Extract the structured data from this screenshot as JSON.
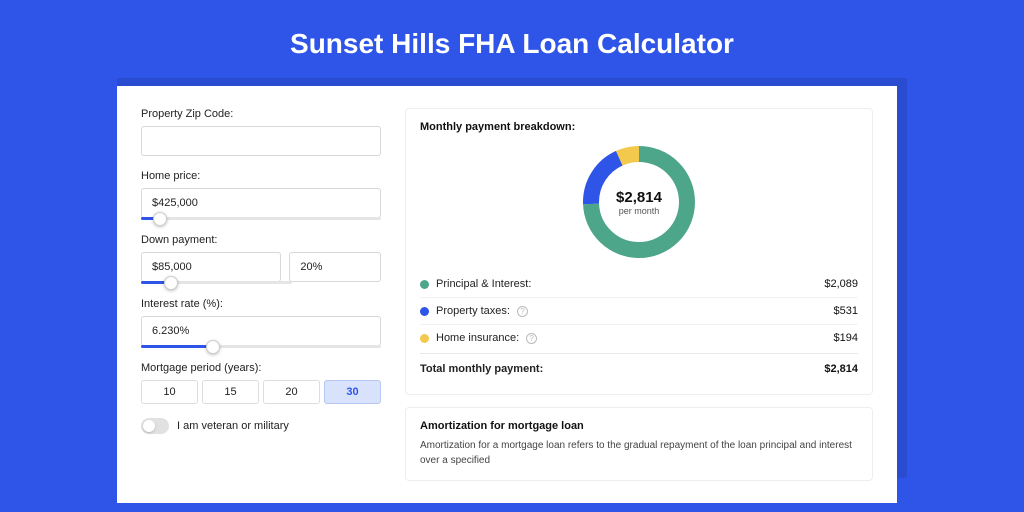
{
  "page_title": "Sunset Hills FHA Loan Calculator",
  "colors": {
    "page_bg": "#2f55e8",
    "shadow_bg": "#2a4cd0",
    "card_bg": "#ffffff",
    "accent": "#2f55e8"
  },
  "form": {
    "zip": {
      "label": "Property Zip Code:",
      "value": ""
    },
    "home_price": {
      "label": "Home price:",
      "value": "$425,000",
      "slider_pct": 8
    },
    "down_payment": {
      "label": "Down payment:",
      "amount": "$85,000",
      "percent": "20%",
      "slider_pct": 20
    },
    "interest_rate": {
      "label": "Interest rate (%):",
      "value": "6.230%",
      "slider_pct": 30
    },
    "mortgage_period": {
      "label": "Mortgage period (years):",
      "options": [
        "10",
        "15",
        "20",
        "30"
      ],
      "selected_index": 3
    },
    "veteran": {
      "label": "I am veteran or military",
      "checked": false
    }
  },
  "breakdown": {
    "title": "Monthly payment breakdown:",
    "donut": {
      "amount": "$2,814",
      "sub": "per month",
      "segments": [
        {
          "label": "Principal & Interest:",
          "value": "$2,089",
          "numeric": 2089,
          "color": "#4da58a",
          "info": false
        },
        {
          "label": "Property taxes:",
          "value": "$531",
          "numeric": 531,
          "color": "#2f55e8",
          "info": true
        },
        {
          "label": "Home insurance:",
          "value": "$194",
          "numeric": 194,
          "color": "#f2c94c",
          "info": true
        }
      ],
      "total_label": "Total monthly payment:",
      "total_value": "$2,814",
      "ring_bg": "#ffffff"
    },
    "donut_style": {
      "stroke_width": 16,
      "radius": 48
    }
  },
  "amortization": {
    "title": "Amortization for mortgage loan",
    "text": "Amortization for a mortgage loan refers to the gradual repayment of the loan principal and interest over a specified"
  }
}
